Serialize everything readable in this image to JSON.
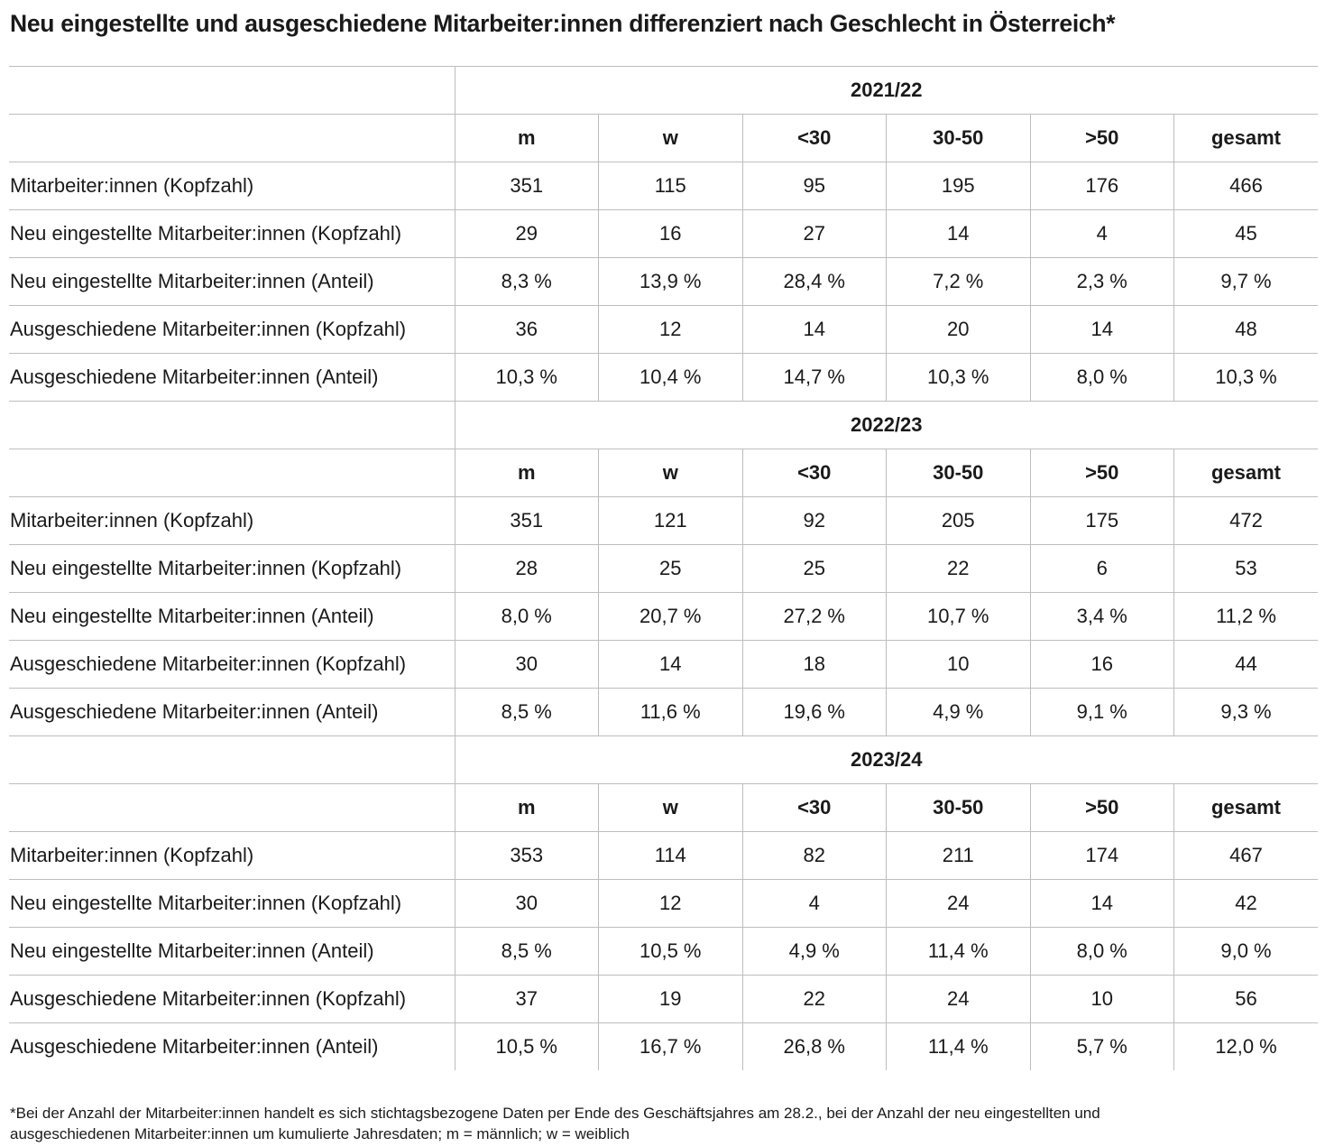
{
  "title": "Neu eingestellte und ausgeschiedene Mitarbeiter:innen differenziert nach Geschlecht in Österreich*",
  "column_headers": [
    "m",
    "w",
    "<30",
    "30-50",
    ">50",
    "gesamt"
  ],
  "sections": [
    {
      "year": "2021/22",
      "rows": [
        {
          "label": "Mitarbeiter:innen (Kopfzahl)",
          "values": [
            "351",
            "115",
            "95",
            "195",
            "176",
            "466"
          ]
        },
        {
          "label": "Neu eingestellte Mitarbeiter:innen (Kopfzahl)",
          "values": [
            "29",
            "16",
            "27",
            "14",
            "4",
            "45"
          ]
        },
        {
          "label": "Neu eingestellte Mitarbeiter:innen (Anteil)",
          "values": [
            "8,3 %",
            "13,9 %",
            "28,4 %",
            "7,2 %",
            "2,3 %",
            "9,7 %"
          ]
        },
        {
          "label": "Ausgeschiedene Mitarbeiter:innen (Kopfzahl)",
          "values": [
            "36",
            "12",
            "14",
            "20",
            "14",
            "48"
          ]
        },
        {
          "label": "Ausgeschiedene Mitarbeiter:innen (Anteil)",
          "values": [
            "10,3 %",
            "10,4 %",
            "14,7 %",
            "10,3 %",
            "8,0 %",
            "10,3 %"
          ]
        }
      ]
    },
    {
      "year": "2022/23",
      "rows": [
        {
          "label": "Mitarbeiter:innen (Kopfzahl)",
          "values": [
            "351",
            "121",
            "92",
            "205",
            "175",
            "472"
          ]
        },
        {
          "label": "Neu eingestellte Mitarbeiter:innen (Kopfzahl)",
          "values": [
            "28",
            "25",
            "25",
            "22",
            "6",
            "53"
          ]
        },
        {
          "label": "Neu eingestellte Mitarbeiter:innen (Anteil)",
          "values": [
            "8,0 %",
            "20,7 %",
            "27,2 %",
            "10,7 %",
            "3,4 %",
            "11,2 %"
          ]
        },
        {
          "label": "Ausgeschiedene Mitarbeiter:innen (Kopfzahl)",
          "values": [
            "30",
            "14",
            "18",
            "10",
            "16",
            "44"
          ]
        },
        {
          "label": "Ausgeschiedene Mitarbeiter:innen (Anteil)",
          "values": [
            "8,5 %",
            "11,6 %",
            "19,6 %",
            "4,9 %",
            "9,1 %",
            "9,3 %"
          ]
        }
      ]
    },
    {
      "year": "2023/24",
      "rows": [
        {
          "label": "Mitarbeiter:innen (Kopfzahl)",
          "values": [
            "353",
            "114",
            "82",
            "211",
            "174",
            "467"
          ]
        },
        {
          "label": "Neu eingestellte Mitarbeiter:innen (Kopfzahl)",
          "values": [
            "30",
            "12",
            "4",
            "24",
            "14",
            "42"
          ]
        },
        {
          "label": "Neu eingestellte Mitarbeiter:innen (Anteil)",
          "values": [
            "8,5 %",
            "10,5 %",
            "4,9 %",
            "11,4 %",
            "8,0 %",
            "9,0 %"
          ]
        },
        {
          "label": "Ausgeschiedene Mitarbeiter:innen (Kopfzahl)",
          "values": [
            "37",
            "19",
            "22",
            "24",
            "10",
            "56"
          ]
        },
        {
          "label": "Ausgeschiedene Mitarbeiter:innen (Anteil)",
          "values": [
            "10,5 %",
            "16,7 %",
            "26,8 %",
            "11,4 %",
            "5,7 %",
            "12,0 %"
          ]
        }
      ]
    }
  ],
  "footnote": {
    "line1": "*Bei der Anzahl der Mitarbeiter:innen handelt es sich stichtagsbezogene Daten per Ende des Geschäftsjahres am 28.2., bei der Anzahl der neu eingestellten und",
    "line2": "ausgeschiedenen Mitarbeiter:innen um kumulierte Jahresdaten; m = männlich; w = weiblich"
  }
}
